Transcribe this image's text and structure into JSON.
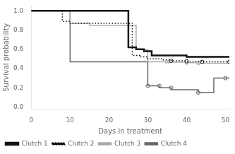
{
  "chart_data": {
    "type": "line",
    "x_label": "Days in treatment",
    "y_label": "Survival probability",
    "xlim": [
      0,
      51
    ],
    "ylim": [
      -0.02,
      1.05
    ],
    "xticks": [
      0,
      10,
      20,
      30,
      40,
      50
    ],
    "yticks": [
      {
        "value": 0.0,
        "label": "0.0"
      },
      0.2,
      0.4,
      0.6,
      0.8,
      {
        "value": 1.0,
        "label": "1.0"
      }
    ],
    "grid": false,
    "legend": "lower left",
    "series": [
      {
        "name": "Clutch 1",
        "color": "#111111",
        "line_style": "solid",
        "x": [
          0,
          25,
          25,
          27,
          27,
          29,
          29,
          31,
          31,
          40,
          40,
          51
        ],
        "values": [
          1.0,
          1.0,
          0.62,
          0.62,
          0.6,
          0.6,
          0.58,
          0.58,
          0.535,
          0.535,
          0.52,
          0.52
        ]
      },
      {
        "name": "Clutch 2",
        "color": "#111111",
        "line_style": "dotted",
        "x": [
          0,
          8,
          8,
          10,
          10,
          26,
          26,
          28,
          28,
          30,
          30,
          34,
          34,
          36,
          36,
          40,
          40,
          44,
          44,
          51
        ],
        "values": [
          1.0,
          1.0,
          0.89,
          0.89,
          0.87,
          0.87,
          0.535,
          0.535,
          0.52,
          0.52,
          0.5,
          0.5,
          0.49,
          0.49,
          0.48,
          0.48,
          0.475,
          0.475,
          0.47,
          0.47
        ],
        "censor_x": [
          36,
          40,
          44,
          51
        ],
        "censor_y": [
          0.48,
          0.475,
          0.47,
          0.47
        ]
      },
      {
        "name": "Clutch 3",
        "color": "#aaaaaa",
        "line_style": "solid",
        "x": [
          0,
          10,
          10,
          15,
          15,
          27,
          27,
          30,
          30,
          35,
          35,
          40,
          40,
          43,
          43,
          51
        ],
        "values": [
          1.0,
          1.0,
          0.87,
          0.87,
          0.85,
          0.85,
          0.6,
          0.6,
          0.47,
          0.47,
          0.465,
          0.465,
          0.46,
          0.46,
          0.455,
          0.455
        ],
        "censor_x": [
          35,
          40,
          43
        ],
        "censor_y": [
          0.465,
          0.46,
          0.455
        ]
      },
      {
        "name": "Clutch 4",
        "color": "#666666",
        "line_style": "solid",
        "x": [
          0,
          10,
          10,
          30,
          30,
          33,
          33,
          36,
          36,
          43,
          43,
          47,
          47,
          51
        ],
        "values": [
          1.0,
          1.0,
          0.47,
          0.47,
          0.22,
          0.22,
          0.2,
          0.2,
          0.18,
          0.18,
          0.15,
          0.15,
          0.3,
          0.3
        ],
        "censor_x": [
          30,
          33,
          36,
          43,
          50
        ],
        "censor_y": [
          0.22,
          0.22,
          0.2,
          0.15,
          0.3
        ]
      }
    ]
  }
}
